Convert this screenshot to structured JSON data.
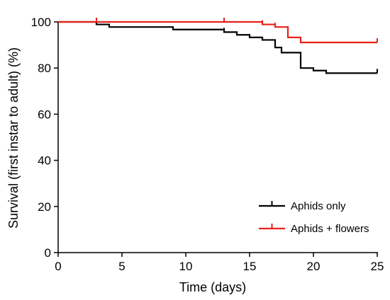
{
  "chart_data": {
    "type": "line",
    "subtype": "step",
    "title": "",
    "xlabel": "Time (days)",
    "ylabel": "Survival (first instar to adult) (%)",
    "xlim": [
      0,
      25
    ],
    "ylim": [
      0,
      100
    ],
    "xticks": [
      0,
      5,
      10,
      15,
      20,
      25
    ],
    "yticks": [
      0,
      20,
      40,
      60,
      80,
      100
    ],
    "grid": false,
    "legend_position": "bottom-right",
    "series": [
      {
        "name": "Aphids only",
        "color": "#000000",
        "points": [
          [
            0,
            100
          ],
          [
            3,
            98.9
          ],
          [
            4,
            97.8
          ],
          [
            9,
            96.7
          ],
          [
            13,
            95.6
          ],
          [
            14,
            94.4
          ],
          [
            15,
            93.3
          ],
          [
            16,
            92.2
          ],
          [
            17,
            88.9
          ],
          [
            17.5,
            86.7
          ],
          [
            19,
            80
          ],
          [
            20,
            78.9
          ],
          [
            21,
            77.8
          ],
          [
            25,
            77.8
          ]
        ],
        "censored": [
          [
            13,
            95.6
          ],
          [
            25,
            77.8
          ]
        ]
      },
      {
        "name": "Aphids + flowers",
        "color": "#e8211a",
        "points": [
          [
            0,
            100
          ],
          [
            16,
            98.9
          ],
          [
            17,
            97.8
          ],
          [
            18,
            93.3
          ],
          [
            19,
            91.1
          ],
          [
            25,
            91.1
          ]
        ],
        "censored": [
          [
            3,
            100
          ],
          [
            13,
            100
          ],
          [
            16,
            98.9
          ],
          [
            17,
            97.8
          ],
          [
            25,
            91.1
          ]
        ]
      }
    ]
  }
}
